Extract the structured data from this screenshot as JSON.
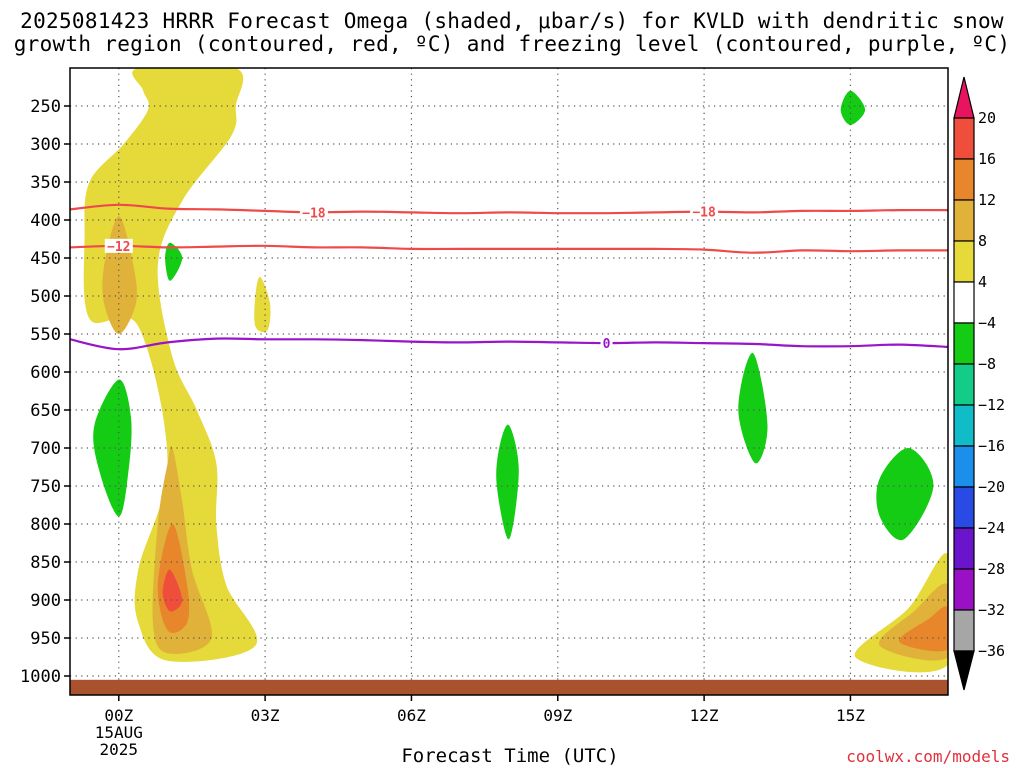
{
  "title_line1": "2025081423 HRRR Forecast Omega (shaded, μbar/s) for KVLD with dendritic snow",
  "title_line2": "growth region (contoured, red, ºC) and freezing level (contoured, purple, ºC)",
  "credit": "coolwx.com/models",
  "colors": {
    "rising4": "#e6d93a",
    "rising8": "#e0b23a",
    "rising12": "#e8862c",
    "rising16": "#ef4f3a",
    "rising20": "#e8145f",
    "sinking8": "#14cc14",
    "dgz": "#ef4a4a",
    "freezing": "#9a14c8",
    "ground": "#a8522e",
    "grid": "#555555"
  },
  "chart_data": {
    "type": "heatmap",
    "title": "2025081423 HRRR Forecast Omega (shaded, μbar/s) for KVLD with dendritic snow growth region (contoured, red, ºC) and freezing level (contoured, purple, ºC)",
    "xlabel": "Forecast Time (UTC)",
    "ylabel": "",
    "x_range_hours": [
      -1,
      17
    ],
    "y_range_hpa": [
      1025,
      200
    ],
    "x_ticks": [
      {
        "hour": 0,
        "label": "00Z",
        "sub1": "15AUG",
        "sub2": "2025"
      },
      {
        "hour": 3,
        "label": "03Z"
      },
      {
        "hour": 6,
        "label": "06Z"
      },
      {
        "hour": 9,
        "label": "09Z"
      },
      {
        "hour": 12,
        "label": "12Z"
      },
      {
        "hour": 15,
        "label": "15Z"
      }
    ],
    "y_ticks": [
      250,
      300,
      350,
      400,
      450,
      500,
      550,
      600,
      650,
      700,
      750,
      800,
      850,
      900,
      950,
      1000
    ],
    "grid": true,
    "colorbar": {
      "labels": [
        "20",
        "16",
        "12",
        "8",
        "4",
        "−4",
        "−8",
        "−12",
        "−16",
        "−20",
        "−24",
        "−28",
        "−32",
        "−36"
      ],
      "colors": [
        "#e8145f",
        "#ef4f3a",
        "#e8862c",
        "#e0b23a",
        "#e6d93a",
        "#ffffff",
        "#14cc14",
        "#12cc88",
        "#10bcc8",
        "#1a90ec",
        "#2a4ae6",
        "#6a14cc",
        "#9a10c4",
        "#a6a6a6",
        "#000000"
      ]
    },
    "omega_regions": [
      {
        "level": 4,
        "color": "#e6d93a",
        "points": [
          [
            0.4,
            200
          ],
          [
            2.4,
            200
          ],
          [
            2.4,
            250
          ],
          [
            2.3,
            290
          ],
          [
            1.3,
            375
          ],
          [
            0.8,
            460
          ],
          [
            1.1,
            580
          ],
          [
            1.6,
            650
          ],
          [
            2.0,
            720
          ],
          [
            2.0,
            800
          ],
          [
            2.2,
            880
          ],
          [
            2.8,
            960
          ],
          [
            1.0,
            980
          ],
          [
            0.4,
            930
          ],
          [
            0.4,
            860
          ],
          [
            1.0,
            720
          ],
          [
            0.4,
            540
          ],
          [
            -0.6,
            530
          ],
          [
            -0.7,
            420
          ],
          [
            -0.6,
            350
          ],
          [
            0.1,
            300
          ],
          [
            0.6,
            255
          ],
          [
            0.5,
            230
          ]
        ]
      },
      {
        "level": 4,
        "color": "#e6d93a",
        "points": [
          [
            2.9,
            475
          ],
          [
            3.1,
            510
          ],
          [
            3.05,
            545
          ],
          [
            2.8,
            540
          ],
          [
            2.8,
            500
          ]
        ]
      },
      {
        "level": 4,
        "color": "#e6d93a",
        "points": [
          [
            15.1,
            975
          ],
          [
            16.2,
            910
          ],
          [
            17,
            840
          ],
          [
            17,
            985
          ]
        ]
      },
      {
        "level": 8,
        "color": "#e0b23a",
        "points": [
          [
            0.0,
            395
          ],
          [
            0.3,
            460
          ],
          [
            0.35,
            510
          ],
          [
            0.0,
            550
          ],
          [
            -0.3,
            510
          ],
          [
            -0.3,
            460
          ]
        ]
      },
      {
        "level": 8,
        "color": "#e0b23a",
        "points": [
          [
            1.1,
            700
          ],
          [
            1.3,
            770
          ],
          [
            1.5,
            860
          ],
          [
            1.9,
            950
          ],
          [
            1.0,
            970
          ],
          [
            0.7,
            930
          ],
          [
            0.8,
            800
          ],
          [
            1.0,
            720
          ]
        ]
      },
      {
        "level": 8,
        "color": "#e0b23a",
        "points": [
          [
            15.6,
            960
          ],
          [
            16.3,
            915
          ],
          [
            17,
            880
          ],
          [
            17,
            975
          ]
        ]
      },
      {
        "level": 12,
        "color": "#e8862c",
        "points": [
          [
            1.1,
            800
          ],
          [
            1.4,
            880
          ],
          [
            1.4,
            930
          ],
          [
            1.0,
            940
          ],
          [
            0.8,
            880
          ]
        ]
      },
      {
        "level": 12,
        "color": "#e8862c",
        "points": [
          [
            16.0,
            955
          ],
          [
            16.6,
            925
          ],
          [
            17,
            910
          ],
          [
            17,
            965
          ]
        ]
      },
      {
        "level": 16,
        "color": "#ef4f3a",
        "points": [
          [
            1.05,
            860
          ],
          [
            1.3,
            900
          ],
          [
            1.05,
            915
          ],
          [
            0.9,
            890
          ]
        ]
      },
      {
        "level": -8,
        "color": "#14cc14",
        "points": [
          [
            0.0,
            610
          ],
          [
            0.25,
            660
          ],
          [
            0.2,
            730
          ],
          [
            0.0,
            790
          ],
          [
            -0.4,
            730
          ],
          [
            -0.5,
            670
          ]
        ]
      },
      {
        "level": -8,
        "color": "#14cc14",
        "points": [
          [
            1.05,
            430
          ],
          [
            1.3,
            450
          ],
          [
            1.05,
            480
          ],
          [
            0.95,
            450
          ]
        ]
      },
      {
        "level": -8,
        "color": "#14cc14",
        "points": [
          [
            8.0,
            670
          ],
          [
            8.2,
            730
          ],
          [
            8.0,
            820
          ],
          [
            7.75,
            750
          ],
          [
            7.8,
            700
          ]
        ]
      },
      {
        "level": -8,
        "color": "#14cc14",
        "points": [
          [
            13.0,
            575
          ],
          [
            13.3,
            670
          ],
          [
            13.05,
            720
          ],
          [
            12.7,
            650
          ]
        ]
      },
      {
        "level": -8,
        "color": "#14cc14",
        "points": [
          [
            15.0,
            230
          ],
          [
            15.3,
            255
          ],
          [
            15.0,
            275
          ],
          [
            14.8,
            255
          ]
        ]
      },
      {
        "level": -8,
        "color": "#14cc14",
        "points": [
          [
            16.2,
            700
          ],
          [
            16.7,
            750
          ],
          [
            16.1,
            820
          ],
          [
            15.6,
            790
          ],
          [
            15.6,
            740
          ]
        ]
      }
    ],
    "dgz_contours": [
      {
        "value": -18,
        "label": "−18",
        "label_hours": [
          4,
          12
        ],
        "points": [
          [
            -1,
            386
          ],
          [
            0,
            380
          ],
          [
            1,
            385
          ],
          [
            2,
            386
          ],
          [
            3,
            388
          ],
          [
            4,
            390
          ],
          [
            5,
            389
          ],
          [
            6,
            390
          ],
          [
            7,
            391
          ],
          [
            8,
            390
          ],
          [
            9,
            391
          ],
          [
            10,
            391
          ],
          [
            11,
            390
          ],
          [
            12,
            389
          ],
          [
            13,
            390
          ],
          [
            14,
            388
          ],
          [
            15,
            388
          ],
          [
            16,
            387
          ],
          [
            17,
            387
          ]
        ]
      },
      {
        "value": -12,
        "label": "−12",
        "label_hours": [
          0
        ],
        "points": [
          [
            -1,
            436
          ],
          [
            0,
            434
          ],
          [
            1,
            436
          ],
          [
            2,
            435
          ],
          [
            3,
            434
          ],
          [
            4,
            436
          ],
          [
            5,
            436
          ],
          [
            6,
            438
          ],
          [
            7,
            438
          ],
          [
            8,
            438
          ],
          [
            9,
            438
          ],
          [
            10,
            438
          ],
          [
            11,
            438
          ],
          [
            12,
            439
          ],
          [
            13,
            443
          ],
          [
            14,
            440
          ],
          [
            15,
            441
          ],
          [
            16,
            440
          ],
          [
            17,
            440
          ]
        ]
      }
    ],
    "freezing_level": {
      "value": 0,
      "label": "0",
      "label_hours": [
        10
      ],
      "points": [
        [
          -1,
          557
        ],
        [
          0,
          570
        ],
        [
          1,
          561
        ],
        [
          2,
          556
        ],
        [
          3,
          557
        ],
        [
          4,
          557
        ],
        [
          5,
          558
        ],
        [
          6,
          560
        ],
        [
          7,
          561
        ],
        [
          8,
          560
        ],
        [
          9,
          561
        ],
        [
          10,
          562
        ],
        [
          11,
          561
        ],
        [
          12,
          562
        ],
        [
          13,
          563
        ],
        [
          14,
          566
        ],
        [
          15,
          566
        ],
        [
          16,
          564
        ],
        [
          17,
          567
        ]
      ]
    },
    "ground": {
      "color": "#a8522e",
      "pressure_hpa": 1005
    }
  }
}
